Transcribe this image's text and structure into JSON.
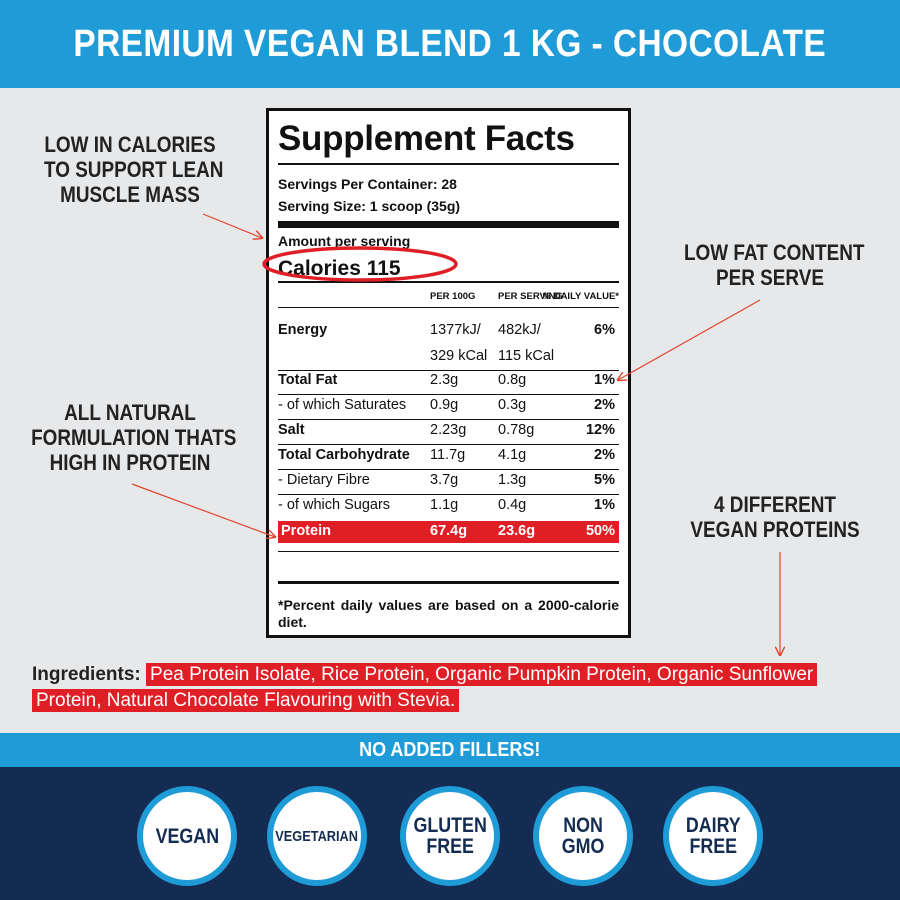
{
  "header": {
    "title": "PREMIUM VEGAN BLEND 1 KG - CHOCOLATE"
  },
  "callouts": {
    "low_calories": [
      "LOW IN CALORIES",
      "TO SUPPORT LEAN",
      "MUSCLE MASS"
    ],
    "low_fat": [
      "LOW FAT CONTENT",
      "PER SERVE"
    ],
    "natural": [
      "ALL NATURAL",
      "FORMULATION THATS",
      "HIGH IN PROTEIN"
    ],
    "vegan_proteins": [
      "4 DIFFERENT",
      "VEGAN PROTEINS"
    ]
  },
  "facts": {
    "title": "Supplement Facts",
    "servings_per_container": "Servings Per Container: 28",
    "serving_size": "Serving Size: 1 scoop (35g)",
    "amount_per_serving": "Amount per serving",
    "calories": "Calories  115",
    "col_per100": "PER 100G",
    "col_perserving": "PER SERVING",
    "col_daily": "% DAILY VALUE*",
    "rows": [
      {
        "name": "Energy",
        "per100": "1377kJ/",
        "perserving": "482kJ/",
        "daily": "6%"
      },
      {
        "name": "",
        "per100": "329 kCal",
        "perserving": "115 kCal",
        "daily": ""
      },
      {
        "name": "Total Fat",
        "per100": "2.3g",
        "perserving": "0.8g",
        "daily": "1%"
      },
      {
        "name": "- of which Saturates",
        "per100": "0.9g",
        "perserving": "0.3g",
        "daily": "2%"
      },
      {
        "name": "Salt",
        "per100": "2.23g",
        "perserving": "0.78g",
        "daily": "12%"
      },
      {
        "name": "Total Carbohydrate",
        "per100": "11.7g",
        "perserving": "4.1g",
        "daily": "2%"
      },
      {
        "name": "- Dietary Fibre",
        "per100": "3.7g",
        "perserving": "1.3g",
        "daily": "5%"
      },
      {
        "name": "- of which Sugars",
        "per100": "1.1g",
        "perserving": "0.4g",
        "daily": "1%"
      },
      {
        "name": "Protein",
        "per100": "67.4g",
        "perserving": "23.6g",
        "daily": "50%"
      }
    ],
    "footnote": "*Percent daily values are based on a 2000-calorie diet."
  },
  "ingredients": {
    "label": "Ingredients:",
    "text": "Pea Protein Isolate, Rice Protein, Organic Pumpkin Protein, Organic Sunflower Protein, Natural Chocolate Flavouring with Stevia."
  },
  "fillers_banner": "NO ADDED FILLERS!",
  "badges": [
    "VEGAN",
    "VEGETARIAN",
    "GLUTEN\nFREE",
    "NON\nGMO",
    "DAIRY\nFREE"
  ],
  "colors": {
    "brand_blue": "#1f9bd7",
    "navy": "#152c52",
    "highlight_red": "#e01e26",
    "background": "#e7e8ea"
  }
}
